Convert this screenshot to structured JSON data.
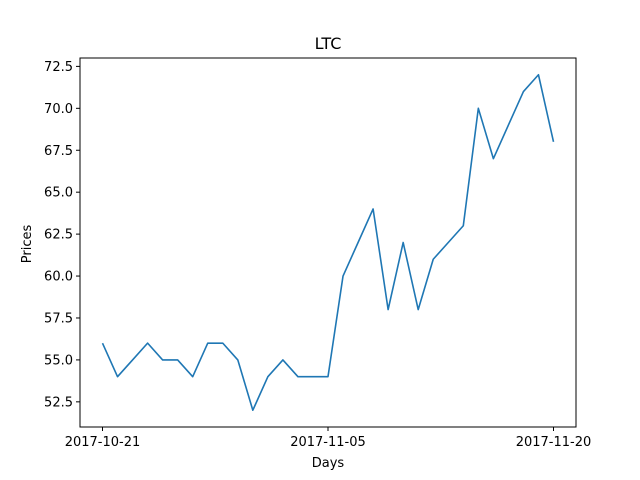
{
  "chart_data": {
    "type": "line",
    "title": "LTC",
    "xlabel": "Days",
    "ylabel": "Prices",
    "x": [
      "2017-10-21",
      "2017-10-22",
      "2017-10-23",
      "2017-10-24",
      "2017-10-25",
      "2017-10-26",
      "2017-10-27",
      "2017-10-28",
      "2017-10-29",
      "2017-10-30",
      "2017-10-31",
      "2017-11-01",
      "2017-11-02",
      "2017-11-03",
      "2017-11-04",
      "2017-11-05",
      "2017-11-06",
      "2017-11-07",
      "2017-11-08",
      "2017-11-09",
      "2017-11-10",
      "2017-11-11",
      "2017-11-12",
      "2017-11-13",
      "2017-11-14",
      "2017-11-15",
      "2017-11-16",
      "2017-11-17",
      "2017-11-18",
      "2017-11-19",
      "2017-11-20"
    ],
    "series": [
      {
        "color": "#1f77b4",
        "values": [
          56,
          54,
          55,
          56,
          55,
          55,
          54,
          56,
          56,
          55,
          52,
          54,
          55,
          54,
          54,
          54,
          60,
          62,
          64,
          58,
          62,
          58,
          61,
          62,
          63,
          70,
          67,
          69,
          71,
          72,
          68
        ]
      }
    ],
    "x_ticks": [
      "2017-10-21",
      "2017-11-05",
      "2017-11-20"
    ],
    "y_ticks": [
      "52.5",
      "55.0",
      "57.5",
      "60.0",
      "62.5",
      "65.0",
      "67.5",
      "70.0",
      "72.5"
    ],
    "ylim": [
      51.0,
      73.0
    ],
    "grid": false,
    "legend": "none"
  }
}
